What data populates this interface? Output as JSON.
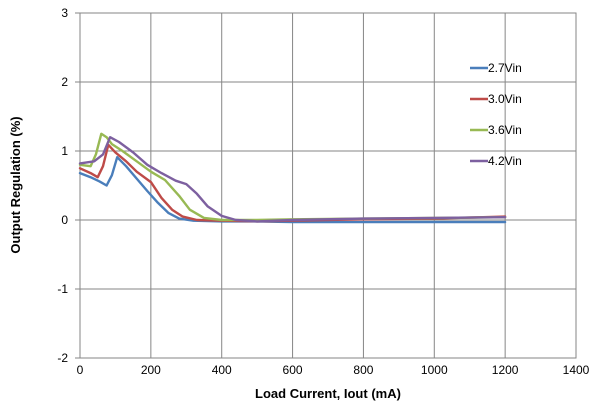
{
  "chart_data": {
    "type": "line",
    "xlabel": "Load Current, Iout (mA)",
    "ylabel": "Output Regulation (%)",
    "xlim": [
      0,
      1400
    ],
    "ylim": [
      -2,
      3
    ],
    "x_ticks": [
      0,
      200,
      400,
      600,
      800,
      1000,
      1200,
      1400
    ],
    "y_ticks": [
      -2,
      -1,
      0,
      1,
      2,
      3
    ],
    "grid": true,
    "legend_position": "right",
    "series": [
      {
        "name": "2.7Vin",
        "color": "#4a7ebb",
        "points": [
          [
            0,
            0.68
          ],
          [
            30,
            0.62
          ],
          [
            55,
            0.56
          ],
          [
            75,
            0.5
          ],
          [
            90,
            0.65
          ],
          [
            105,
            0.91
          ],
          [
            130,
            0.78
          ],
          [
            160,
            0.6
          ],
          [
            190,
            0.42
          ],
          [
            220,
            0.25
          ],
          [
            250,
            0.1
          ],
          [
            280,
            0.02
          ],
          [
            320,
            -0.01
          ],
          [
            400,
            -0.02
          ],
          [
            500,
            -0.02
          ],
          [
            600,
            -0.03
          ],
          [
            800,
            -0.03
          ],
          [
            1000,
            -0.03
          ],
          [
            1200,
            -0.03
          ]
        ]
      },
      {
        "name": "3.0Vin",
        "color": "#be4b48",
        "points": [
          [
            0,
            0.75
          ],
          [
            30,
            0.68
          ],
          [
            50,
            0.62
          ],
          [
            65,
            0.78
          ],
          [
            80,
            1.09
          ],
          [
            100,
            0.98
          ],
          [
            130,
            0.85
          ],
          [
            160,
            0.7
          ],
          [
            200,
            0.55
          ],
          [
            230,
            0.32
          ],
          [
            260,
            0.15
          ],
          [
            290,
            0.05
          ],
          [
            330,
            0.0
          ],
          [
            400,
            -0.01
          ],
          [
            500,
            -0.02
          ],
          [
            600,
            -0.01
          ],
          [
            800,
            0.01
          ],
          [
            1000,
            0.02
          ],
          [
            1200,
            0.05
          ]
        ]
      },
      {
        "name": "3.6Vin",
        "color": "#98b954",
        "points": [
          [
            0,
            0.8
          ],
          [
            30,
            0.78
          ],
          [
            45,
            0.95
          ],
          [
            60,
            1.25
          ],
          [
            75,
            1.2
          ],
          [
            90,
            1.1
          ],
          [
            120,
            1.0
          ],
          [
            160,
            0.85
          ],
          [
            200,
            0.7
          ],
          [
            240,
            0.58
          ],
          [
            280,
            0.35
          ],
          [
            310,
            0.15
          ],
          [
            350,
            0.03
          ],
          [
            400,
            0.0
          ],
          [
            500,
            0.0
          ],
          [
            600,
            0.01
          ],
          [
            800,
            0.02
          ],
          [
            1000,
            0.03
          ],
          [
            1200,
            0.04
          ]
        ]
      },
      {
        "name": "4.2Vin",
        "color": "#7d60a0",
        "points": [
          [
            0,
            0.82
          ],
          [
            40,
            0.85
          ],
          [
            65,
            0.95
          ],
          [
            85,
            1.2
          ],
          [
            110,
            1.13
          ],
          [
            150,
            0.98
          ],
          [
            190,
            0.8
          ],
          [
            230,
            0.68
          ],
          [
            270,
            0.57
          ],
          [
            300,
            0.52
          ],
          [
            330,
            0.38
          ],
          [
            360,
            0.2
          ],
          [
            400,
            0.06
          ],
          [
            440,
            0.0
          ],
          [
            500,
            -0.02
          ],
          [
            600,
            0.0
          ],
          [
            800,
            0.02
          ],
          [
            1000,
            0.03
          ],
          [
            1200,
            0.04
          ]
        ]
      }
    ]
  }
}
